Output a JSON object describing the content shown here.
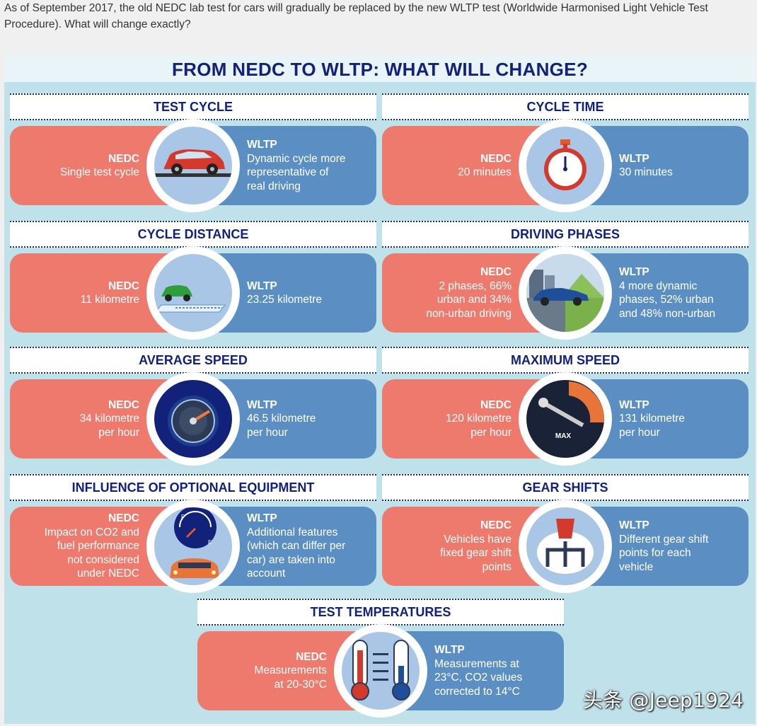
{
  "intro": "As of September 2017, the old NEDC lab test for cars will gradually be replaced by the new WLTP test (Worldwide Harmonised Light Vehicle Test Procedure). What will change exactly?",
  "title": "FROM NEDC TO WLTP: WHAT WILL CHANGE?",
  "labels": {
    "nedc": "NEDC",
    "wltp": "WLTP"
  },
  "cards": [
    {
      "title": "TEST CYCLE",
      "icon": "car-on-dyno-icon",
      "nedc": [
        "Single test cycle"
      ],
      "wltp": [
        "Dynamic cycle more",
        "representative of",
        "real driving"
      ]
    },
    {
      "title": "CYCLE TIME",
      "icon": "stopwatch-icon",
      "nedc": [
        "20 minutes"
      ],
      "wltp": [
        "30 minutes"
      ]
    },
    {
      "title": "CYCLE DISTANCE",
      "icon": "car-road-icon",
      "nedc": [
        "11 kilometre"
      ],
      "wltp": [
        "23.25 kilometre"
      ]
    },
    {
      "title": "DRIVING PHASES",
      "icon": "car-landscape-icon",
      "nedc": [
        "2 phases, 66%",
        "urban and 34%",
        "non-urban driving"
      ],
      "wltp": [
        "4 more dynamic",
        "phases, 52% urban",
        "and 48% non-urban"
      ]
    },
    {
      "title": "AVERAGE SPEED",
      "icon": "speedometer-icon",
      "nedc": [
        "34 kilometre",
        "per hour"
      ],
      "wltp": [
        "46.5 kilometre",
        "per hour"
      ]
    },
    {
      "title": "MAXIMUM SPEED",
      "icon": "max-speed-gauge-icon",
      "gauge_text": "MAX",
      "nedc": [
        "120 kilometre",
        "per hour"
      ],
      "wltp": [
        "131 kilometre",
        "per hour"
      ]
    },
    {
      "title": "INFLUENCE OF OPTIONAL EQUIPMENT",
      "icon": "fuel-gauge-car-icon",
      "gauge_full": "F",
      "gauge_empty": "E",
      "nedc": [
        "Impact on CO2 and",
        "fuel performance",
        "not considered",
        "under NEDC"
      ],
      "wltp": [
        "Additional features",
        "(which can differ per",
        "car) are taken into",
        "account"
      ]
    },
    {
      "title": "GEAR SHIFTS",
      "icon": "gear-stick-icon",
      "nedc": [
        "Vehicles have",
        "fixed gear shift",
        "points"
      ],
      "wltp": [
        "Different gear shift",
        "points for each",
        "vehicle"
      ]
    },
    {
      "title": "TEST TEMPERATURES",
      "icon": "thermometers-icon",
      "nedc": [
        "Measurements",
        "at 20-30°C"
      ],
      "wltp": [
        "Measurements at",
        "23°C, CO2 values",
        "corrected to 14°C"
      ]
    }
  ],
  "watermark": "头条 @Jeep1924",
  "colors": {
    "nedc": "#ee7a6d",
    "wltp": "#5b8fc4",
    "navy": "#12227a",
    "panel": "#bfe1ea"
  }
}
